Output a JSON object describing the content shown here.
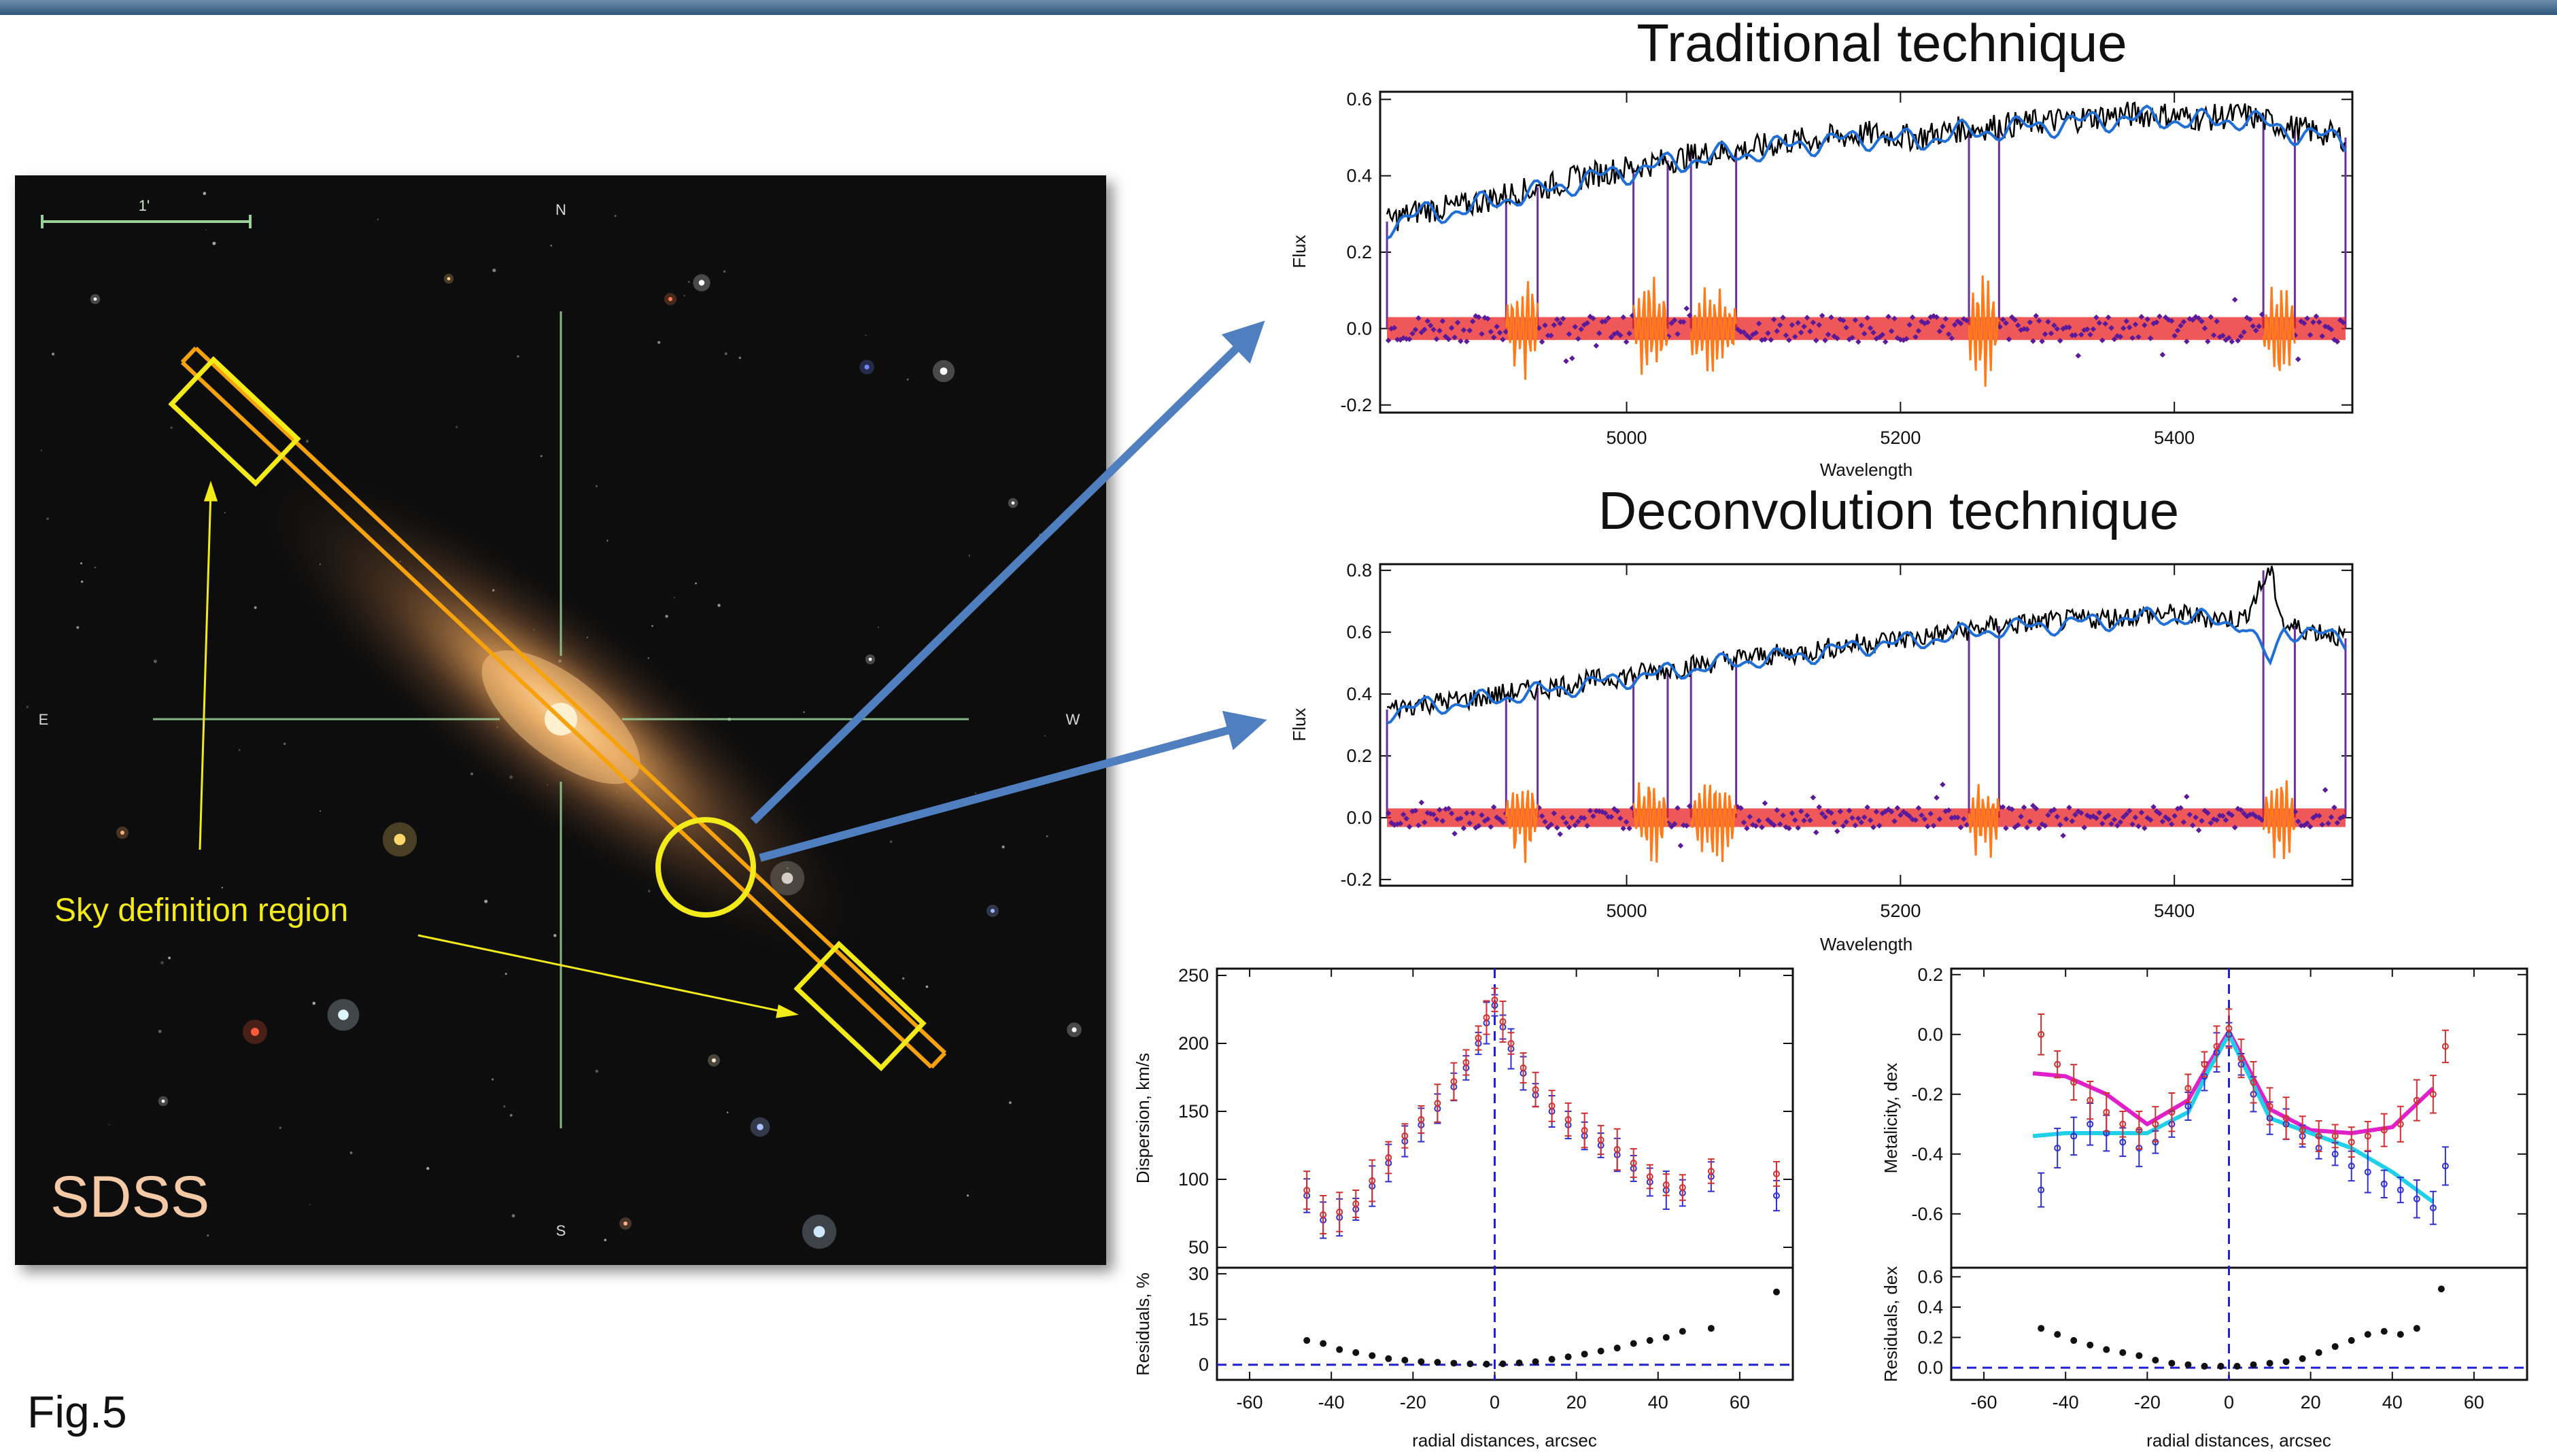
{
  "figure_label": "Fig.5",
  "image_panel": {
    "survey_label": "SDSS",
    "scale_label": "1'",
    "compass": {
      "n": "N",
      "s": "S",
      "e": "E",
      "w": "W"
    },
    "annotation": "Sky definition region",
    "colors": {
      "slit": "#f5a20c",
      "sky_box": "#f3ea19",
      "annotation_text": "#f3ea19",
      "survey_label": "#f4c9a6",
      "crosshair": "#9bd29b"
    }
  },
  "arrow_color": "#4f7fbf",
  "chart_data": [
    {
      "type": "line",
      "title": "Traditional technique",
      "xlabel": "Wavelength",
      "ylabel": "Flux",
      "xlim": [
        4820,
        5530
      ],
      "ylim": [
        -0.22,
        0.62
      ],
      "xticks": [
        5000,
        5200,
        5400
      ],
      "yticks": [
        -0.2,
        0.0,
        0.2,
        0.4,
        0.6
      ],
      "ytick_labels": [
        "-0.2",
        "0.0",
        "0.2",
        "0.4",
        "0.6"
      ],
      "series": [
        {
          "role": "observed",
          "color": "#000000",
          "points": [
            [
              4825,
              0.28
            ],
            [
              4850,
              0.31
            ],
            [
              4880,
              0.32
            ],
            [
              4910,
              0.35
            ],
            [
              4940,
              0.37
            ],
            [
              4970,
              0.4
            ],
            [
              5000,
              0.42
            ],
            [
              5030,
              0.44
            ],
            [
              5060,
              0.46
            ],
            [
              5090,
              0.47
            ],
            [
              5120,
              0.49
            ],
            [
              5150,
              0.5
            ],
            [
              5180,
              0.51
            ],
            [
              5210,
              0.5
            ],
            [
              5240,
              0.52
            ],
            [
              5270,
              0.53
            ],
            [
              5300,
              0.54
            ],
            [
              5330,
              0.55
            ],
            [
              5360,
              0.56
            ],
            [
              5390,
              0.56
            ],
            [
              5420,
              0.55
            ],
            [
              5450,
              0.56
            ],
            [
              5480,
              0.53
            ],
            [
              5510,
              0.51
            ],
            [
              5525,
              0.5
            ]
          ]
        },
        {
          "role": "model",
          "color": "#1f6fd6",
          "points": [
            [
              4825,
              0.27
            ],
            [
              4850,
              0.3
            ],
            [
              4880,
              0.31
            ],
            [
              4910,
              0.34
            ],
            [
              4940,
              0.36
            ],
            [
              4970,
              0.39
            ],
            [
              5000,
              0.41
            ],
            [
              5030,
              0.43
            ],
            [
              5060,
              0.45
            ],
            [
              5090,
              0.46
            ],
            [
              5120,
              0.48
            ],
            [
              5150,
              0.49
            ],
            [
              5180,
              0.5
            ],
            [
              5210,
              0.49
            ],
            [
              5240,
              0.51
            ],
            [
              5270,
              0.52
            ],
            [
              5300,
              0.53
            ],
            [
              5330,
              0.54
            ],
            [
              5360,
              0.55
            ],
            [
              5390,
              0.55
            ],
            [
              5420,
              0.54
            ],
            [
              5450,
              0.55
            ],
            [
              5480,
              0.52
            ],
            [
              5510,
              0.5
            ],
            [
              5525,
              0.49
            ]
          ]
        }
      ],
      "residual_band": {
        "center": 0.0,
        "halfwidth": 0.03,
        "color": "#e82020",
        "scatter_color": "#5a1a9a"
      },
      "masked_regions": [
        [
          4912,
          4935
        ],
        [
          5005,
          5030
        ],
        [
          5047,
          5080
        ],
        [
          5250,
          5272
        ],
        [
          5465,
          5488
        ]
      ],
      "masked_color": "#ff7a1a",
      "window_edges": [
        4825,
        4912,
        4935,
        5005,
        5030,
        5047,
        5080,
        5250,
        5272,
        5465,
        5488,
        5525
      ],
      "window_color": "#6a2fa0"
    },
    {
      "type": "line",
      "title": "Deconvolution technique",
      "xlabel": "Wavelength",
      "ylabel": "Flux",
      "xlim": [
        4820,
        5530
      ],
      "ylim": [
        -0.22,
        0.82
      ],
      "xticks": [
        5000,
        5200,
        5400
      ],
      "yticks": [
        -0.2,
        0.0,
        0.2,
        0.4,
        0.6,
        0.8
      ],
      "ytick_labels": [
        "-0.2",
        "0.0",
        "0.2",
        "0.4",
        "0.6",
        "0.8"
      ],
      "series": [
        {
          "role": "observed",
          "color": "#000000",
          "points": [
            [
              4825,
              0.35
            ],
            [
              4850,
              0.37
            ],
            [
              4880,
              0.38
            ],
            [
              4910,
              0.4
            ],
            [
              4940,
              0.42
            ],
            [
              4970,
              0.44
            ],
            [
              5000,
              0.46
            ],
            [
              5030,
              0.48
            ],
            [
              5060,
              0.5
            ],
            [
              5090,
              0.52
            ],
            [
              5120,
              0.53
            ],
            [
              5150,
              0.55
            ],
            [
              5180,
              0.57
            ],
            [
              5210,
              0.58
            ],
            [
              5240,
              0.6
            ],
            [
              5270,
              0.62
            ],
            [
              5300,
              0.63
            ],
            [
              5330,
              0.64
            ],
            [
              5360,
              0.65
            ],
            [
              5390,
              0.66
            ],
            [
              5420,
              0.65
            ],
            [
              5450,
              0.64
            ],
            [
              5470,
              0.8
            ],
            [
              5480,
              0.62
            ],
            [
              5510,
              0.6
            ],
            [
              5525,
              0.58
            ]
          ]
        },
        {
          "role": "model",
          "color": "#1f6fd6",
          "points": [
            [
              4825,
              0.34
            ],
            [
              4850,
              0.36
            ],
            [
              4880,
              0.37
            ],
            [
              4910,
              0.39
            ],
            [
              4940,
              0.41
            ],
            [
              4970,
              0.43
            ],
            [
              5000,
              0.45
            ],
            [
              5030,
              0.47
            ],
            [
              5060,
              0.49
            ],
            [
              5090,
              0.51
            ],
            [
              5120,
              0.52
            ],
            [
              5150,
              0.54
            ],
            [
              5180,
              0.56
            ],
            [
              5210,
              0.57
            ],
            [
              5240,
              0.59
            ],
            [
              5270,
              0.61
            ],
            [
              5300,
              0.62
            ],
            [
              5330,
              0.63
            ],
            [
              5360,
              0.64
            ],
            [
              5390,
              0.65
            ],
            [
              5420,
              0.64
            ],
            [
              5450,
              0.63
            ],
            [
              5470,
              0.5
            ],
            [
              5480,
              0.61
            ],
            [
              5510,
              0.59
            ],
            [
              5525,
              0.57
            ]
          ]
        }
      ],
      "residual_band": {
        "center": 0.0,
        "halfwidth": 0.03,
        "color": "#e82020",
        "scatter_color": "#5a1a9a"
      },
      "masked_regions": [
        [
          4912,
          4935
        ],
        [
          5005,
          5030
        ],
        [
          5047,
          5080
        ],
        [
          5250,
          5272
        ],
        [
          5465,
          5488
        ]
      ],
      "masked_color": "#ff7a1a",
      "window_edges": [
        4825,
        4912,
        4935,
        5005,
        5030,
        5047,
        5080,
        5250,
        5272,
        5465,
        5488,
        5525
      ],
      "window_color": "#6a2fa0"
    },
    {
      "type": "scatter",
      "xlabel": "radial distances, arcsec",
      "ylabel": "Dispersion, km/s",
      "xlim": [
        -68,
        73
      ],
      "ylim": [
        35,
        255
      ],
      "xticks": [
        -60,
        -40,
        -20,
        0,
        20,
        40,
        60
      ],
      "yticks": [
        50,
        100,
        150,
        200,
        250
      ],
      "series": [
        {
          "name": "",
          "color": "#3030d0",
          "x": [
            -46,
            -42,
            -38,
            -34,
            -30,
            -26,
            -22,
            -18,
            -14,
            -10,
            -7,
            -4,
            -2,
            0,
            2,
            4,
            7,
            10,
            14,
            18,
            22,
            26,
            30,
            34,
            38,
            42,
            46,
            53,
            69
          ],
          "y": [
            88,
            70,
            72,
            78,
            95,
            112,
            128,
            140,
            152,
            168,
            182,
            200,
            215,
            228,
            212,
            196,
            178,
            162,
            150,
            140,
            132,
            125,
            118,
            108,
            98,
            92,
            90,
            102,
            88
          ]
        },
        {
          "name": "",
          "color": "#d03030",
          "x": [
            -46,
            -42,
            -38,
            -34,
            -30,
            -26,
            -22,
            -18,
            -14,
            -10,
            -7,
            -4,
            -2,
            0,
            2,
            4,
            7,
            10,
            14,
            18,
            22,
            26,
            30,
            34,
            38,
            42,
            46,
            53,
            69
          ],
          "y": [
            92,
            74,
            76,
            82,
            99,
            116,
            132,
            144,
            156,
            172,
            186,
            204,
            219,
            232,
            216,
            200,
            182,
            166,
            154,
            144,
            136,
            129,
            122,
            112,
            102,
            96,
            94,
            106,
            104
          ]
        }
      ],
      "center_line": 0,
      "residuals": {
        "ylabel": "Residuals, %",
        "ylim": [
          -5,
          32
        ],
        "yticks": [
          0,
          15,
          30
        ],
        "x": [
          -46,
          -42,
          -38,
          -34,
          -30,
          -26,
          -22,
          -18,
          -14,
          -10,
          -6,
          -2,
          2,
          6,
          10,
          14,
          18,
          22,
          26,
          30,
          34,
          38,
          42,
          46,
          53,
          69
        ],
        "y": [
          8,
          7,
          5,
          4,
          3,
          2,
          1.5,
          1,
          0.8,
          0.5,
          0.3,
          0.2,
          0.3,
          0.6,
          1,
          1.8,
          2.6,
          3.5,
          4.5,
          5.5,
          7,
          8,
          9,
          11,
          12,
          24
        ]
      }
    },
    {
      "type": "scatter",
      "xlabel": "radial distances, arcsec",
      "ylabel": "Metalicity, dex",
      "xlim": [
        -68,
        73
      ],
      "ylim": [
        -0.78,
        0.22
      ],
      "xticks": [
        -60,
        -40,
        -20,
        0,
        20,
        40,
        60
      ],
      "yticks": [
        0.2,
        0.0,
        -0.2,
        -0.4,
        -0.6
      ],
      "ytick_labels": [
        "0.2",
        "0.0",
        "-0.2",
        "-0.4",
        "-0.6"
      ],
      "series": [
        {
          "name": "",
          "color": "#3030d0",
          "x": [
            -46,
            -42,
            -38,
            -34,
            -30,
            -26,
            -22,
            -18,
            -14,
            -10,
            -6,
            -3,
            0,
            3,
            6,
            10,
            14,
            18,
            22,
            26,
            30,
            34,
            38,
            42,
            46,
            50,
            53
          ],
          "y": [
            -0.52,
            -0.38,
            -0.34,
            -0.3,
            -0.33,
            -0.36,
            -0.38,
            -0.36,
            -0.3,
            -0.24,
            -0.14,
            -0.06,
            0.0,
            -0.1,
            -0.2,
            -0.28,
            -0.3,
            -0.34,
            -0.38,
            -0.4,
            -0.44,
            -0.46,
            -0.5,
            -0.52,
            -0.55,
            -0.58,
            -0.44
          ]
        },
        {
          "name": "",
          "color": "#d03030",
          "x": [
            -46,
            -42,
            -38,
            -34,
            -30,
            -26,
            -22,
            -18,
            -14,
            -10,
            -6,
            -3,
            0,
            3,
            6,
            10,
            14,
            18,
            22,
            26,
            30,
            34,
            38,
            42,
            46,
            50,
            53
          ],
          "y": [
            0.0,
            -0.1,
            -0.16,
            -0.22,
            -0.26,
            -0.3,
            -0.32,
            -0.3,
            -0.26,
            -0.18,
            -0.1,
            -0.04,
            0.02,
            -0.08,
            -0.16,
            -0.24,
            -0.28,
            -0.32,
            -0.34,
            -0.34,
            -0.36,
            -0.34,
            -0.32,
            -0.3,
            -0.22,
            -0.2,
            -0.04
          ]
        }
      ],
      "fits": [
        {
          "color": "#e020c8",
          "x": [
            -48,
            -40,
            -30,
            -20,
            -10,
            -5,
            0,
            5,
            10,
            20,
            30,
            40,
            50
          ],
          "y": [
            -0.13,
            -0.14,
            -0.2,
            -0.3,
            -0.22,
            -0.1,
            0.01,
            -0.12,
            -0.25,
            -0.32,
            -0.33,
            -0.31,
            -0.18
          ]
        },
        {
          "color": "#20d0e8",
          "x": [
            -48,
            -40,
            -30,
            -20,
            -10,
            -5,
            0,
            5,
            10,
            20,
            30,
            40,
            50
          ],
          "y": [
            -0.34,
            -0.33,
            -0.33,
            -0.33,
            -0.26,
            -0.12,
            0.0,
            -0.14,
            -0.28,
            -0.33,
            -0.38,
            -0.46,
            -0.56
          ]
        }
      ],
      "center_line": 0,
      "residuals": {
        "ylabel": "Residuals, dex",
        "ylim": [
          -0.08,
          0.66
        ],
        "yticks": [
          0.0,
          0.2,
          0.4,
          0.6
        ],
        "ytick_labels": [
          "0.0",
          "0.2",
          "0.4",
          "0.6"
        ],
        "x": [
          -46,
          -42,
          -38,
          -34,
          -30,
          -26,
          -22,
          -18,
          -14,
          -10,
          -6,
          -2,
          2,
          6,
          10,
          14,
          18,
          22,
          26,
          30,
          34,
          38,
          42,
          46,
          52
        ],
        "y": [
          0.26,
          0.22,
          0.18,
          0.15,
          0.12,
          0.1,
          0.08,
          0.05,
          0.03,
          0.02,
          0.01,
          0.01,
          0.01,
          0.02,
          0.03,
          0.04,
          0.06,
          0.1,
          0.14,
          0.18,
          0.22,
          0.24,
          0.22,
          0.26,
          0.52
        ]
      }
    }
  ]
}
